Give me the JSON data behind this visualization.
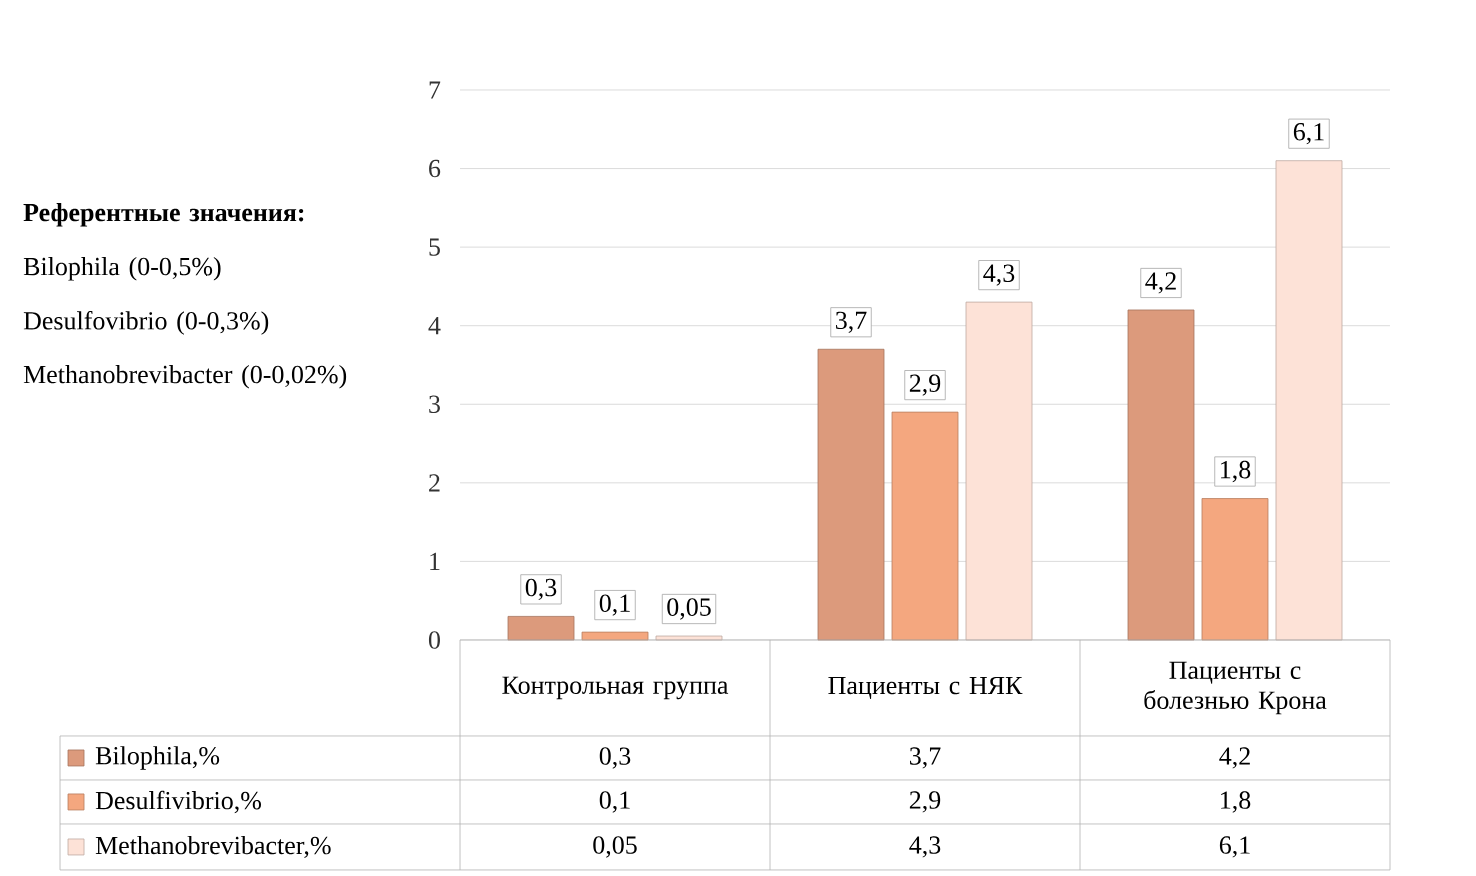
{
  "chart_data": {
    "type": "bar",
    "categories": [
      "Контрольная группа",
      "Пациенты с НЯК",
      "Пациенты с болезнью Крона"
    ],
    "series": [
      {
        "name": "Bilophila,%",
        "color": "#dc9a7c",
        "values": [
          0.3,
          3.7,
          4.2
        ],
        "value_labels": [
          "0,3",
          "3,7",
          "4,2"
        ]
      },
      {
        "name": "Desulfivibrio,%",
        "color": "#f4a77f",
        "values": [
          0.1,
          2.9,
          1.8
        ],
        "value_labels": [
          "0,1",
          "2,9",
          "1,8"
        ]
      },
      {
        "name": "Methanobrevibacter,%",
        "color": "#fde2d7",
        "values": [
          0.05,
          4.3,
          6.1
        ],
        "value_labels": [
          "0,05",
          "4,3",
          "6,1"
        ]
      }
    ],
    "ylim": [
      0,
      7
    ],
    "yticks": [
      0,
      1,
      2,
      3,
      4,
      5,
      6,
      7
    ],
    "grid": "y",
    "legend": "bottom",
    "annotations": [
      "Референтные значения:",
      "Bilophila (0-0,5%)",
      "Desulfovibrio (0-0,3%)",
      "Methanobrevibacter (0-0,02%)"
    ]
  }
}
